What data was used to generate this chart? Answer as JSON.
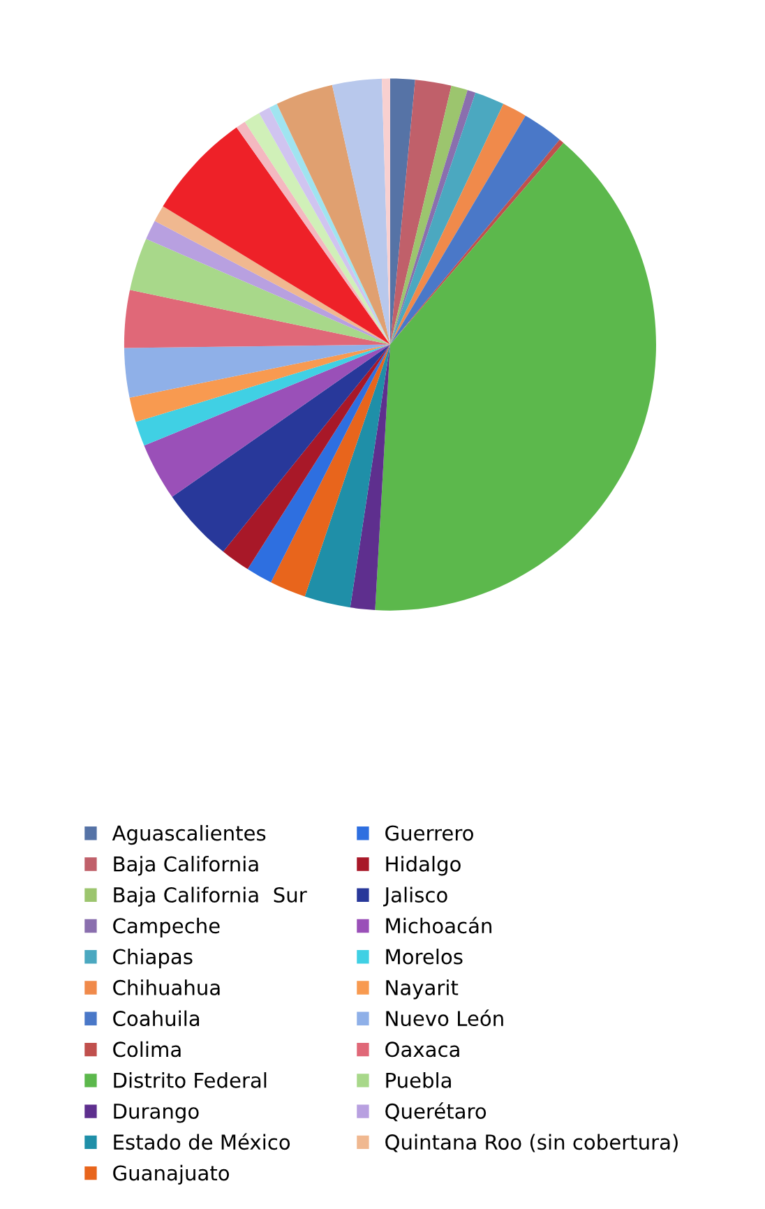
{
  "chart_data": {
    "type": "pie",
    "categories": [
      "Aguascalientes",
      "Baja California",
      "Baja California  Sur",
      "Campeche",
      "Chiapas",
      "Chihuahua",
      "Coahuila",
      "Colima",
      "Distrito Federal",
      "Durango",
      "Estado de México",
      "Guanajuato",
      "Guerrero",
      "Hidalgo",
      "Jalisco",
      "Michoacán",
      "Morelos",
      "Nayarit",
      "Nuevo León",
      "Oaxaca",
      "Puebla",
      "Querétaro",
      "Quintana Roo (sin cobertura)",
      null,
      null,
      null,
      null,
      null,
      null,
      null,
      null
    ],
    "values": [
      1.5,
      2.2,
      1.0,
      0.5,
      1.8,
      1.5,
      2.5,
      0.3,
      39.6,
      1.5,
      2.8,
      2.2,
      1.6,
      1.8,
      4.5,
      3.5,
      1.5,
      1.5,
      3.0,
      3.5,
      3.2,
      1.2,
      1.0,
      6.5,
      0.6,
      1.0,
      0.7,
      0.5,
      3.5,
      3.0,
      0.5
    ],
    "colors": [
      "#5673a6",
      "#c0606a",
      "#9cc56e",
      "#8a6fae",
      "#4ba8c0",
      "#f08a4b",
      "#4a78c8",
      "#c0504d",
      "#5cb84c",
      "#5e2f8e",
      "#1f8fa8",
      "#e8651c",
      "#2e6fe0",
      "#a81828",
      "#28389a",
      "#9a50b8",
      "#40d0e4",
      "#f89a50",
      "#8fb0e8",
      "#e06878",
      "#a8d88a",
      "#b8a0e0",
      "#f0b890",
      "#ee2128",
      "#f4b8c0",
      "#d0f0b8",
      "#d0c4f0",
      "#a0e4f0",
      "#e0a070",
      "#b8c8ec",
      "#f8d0d0"
    ],
    "legend": "bottom"
  }
}
